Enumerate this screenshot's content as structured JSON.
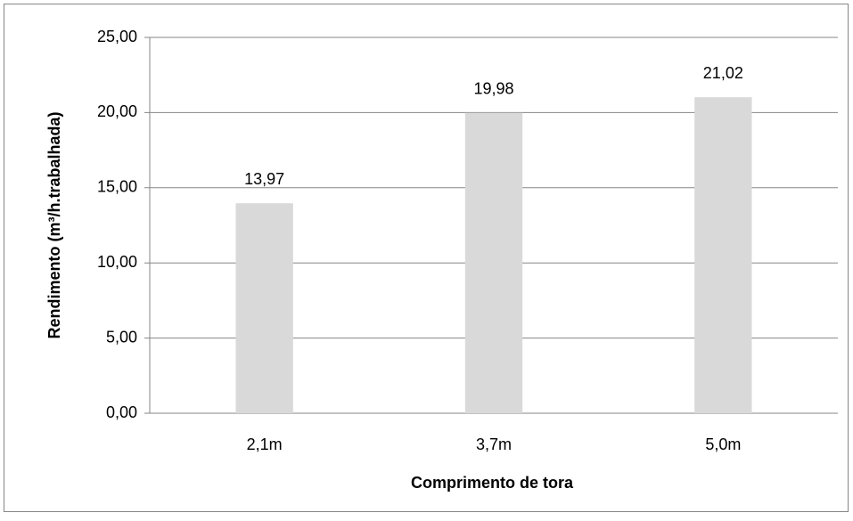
{
  "chart_data": {
    "type": "bar",
    "xlabel": "Comprimento de tora",
    "ylabel": "Rendimento (m³/h.trabalhada)",
    "categories": [
      "2,1m",
      "3,7m",
      "5,0m"
    ],
    "values": [
      13.97,
      19.98,
      21.02
    ],
    "value_labels": [
      "13,97",
      "19,98",
      "21,02"
    ],
    "color": "#d9d9d9",
    "ylim": [
      0,
      25
    ],
    "yticks": [
      {
        "value": 0,
        "label": "0,00"
      },
      {
        "value": 5,
        "label": "5,00"
      },
      {
        "value": 10,
        "label": "10,00"
      },
      {
        "value": 15,
        "label": "15,00"
      },
      {
        "value": 20,
        "label": "20,00"
      },
      {
        "value": 25,
        "label": "25,00"
      }
    ],
    "grid": true
  }
}
